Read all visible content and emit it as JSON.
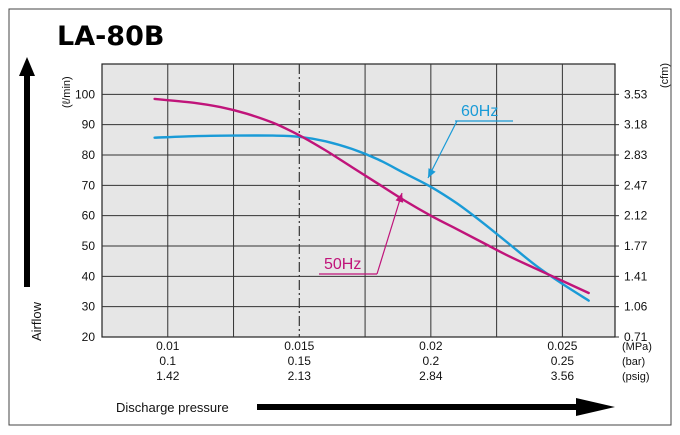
{
  "title": "LA-80B",
  "chart_data": {
    "type": "line",
    "title": "LA-80B",
    "ylabel": "Airflow",
    "y_unit_left": "(ℓ/min)",
    "y_unit_right": "(cfm)",
    "xlabel": "Discharge pressure",
    "ylim": [
      20,
      110
    ],
    "xlim": [
      0.0075,
      0.027
    ],
    "y_ticks_left": [
      "20",
      "30",
      "40",
      "50",
      "60",
      "70",
      "80",
      "90",
      "100"
    ],
    "y_ticks_right": [
      "0.71",
      "1.06",
      "1.41",
      "1.77",
      "2.12",
      "2.47",
      "2.83",
      "3.18",
      "3.53"
    ],
    "x_rows": [
      {
        "unit": "(MPa)",
        "labels": [
          "0.01",
          "0.015",
          "0.02",
          "0.025"
        ]
      },
      {
        "unit": "(bar)",
        "labels": [
          "0.1",
          "0.15",
          "0.2",
          "0.25"
        ]
      },
      {
        "unit": "(psig)",
        "labels": [
          "1.42",
          "2.13",
          "2.84",
          "3.56"
        ]
      }
    ],
    "x_tick_values": [
      0.01,
      0.015,
      0.02,
      0.025
    ],
    "rated_pressure": 0.015,
    "series": [
      {
        "name": "60Hz",
        "color": "#1a9bd7",
        "x": [
          0.0095,
          0.011,
          0.0125,
          0.014,
          0.015,
          0.016,
          0.017,
          0.018,
          0.019,
          0.02,
          0.021,
          0.022,
          0.023,
          0.024,
          0.025,
          0.026
        ],
        "y": [
          85.7,
          86.2,
          86.4,
          86.4,
          86.0,
          84.5,
          82.0,
          78.5,
          74.0,
          69.5,
          64.0,
          57.5,
          50.5,
          43.5,
          37.5,
          32.0
        ]
      },
      {
        "name": "50Hz",
        "color": "#c0147a",
        "x": [
          0.0095,
          0.011,
          0.012,
          0.013,
          0.014,
          0.015,
          0.016,
          0.017,
          0.018,
          0.019,
          0.02,
          0.021,
          0.022,
          0.023,
          0.024,
          0.025,
          0.026
        ],
        "y": [
          98.5,
          97.2,
          95.8,
          93.6,
          90.6,
          86.5,
          81.5,
          76.0,
          70.5,
          65.0,
          60.0,
          55.5,
          51.0,
          46.5,
          42.5,
          38.5,
          34.5
        ]
      }
    ]
  }
}
